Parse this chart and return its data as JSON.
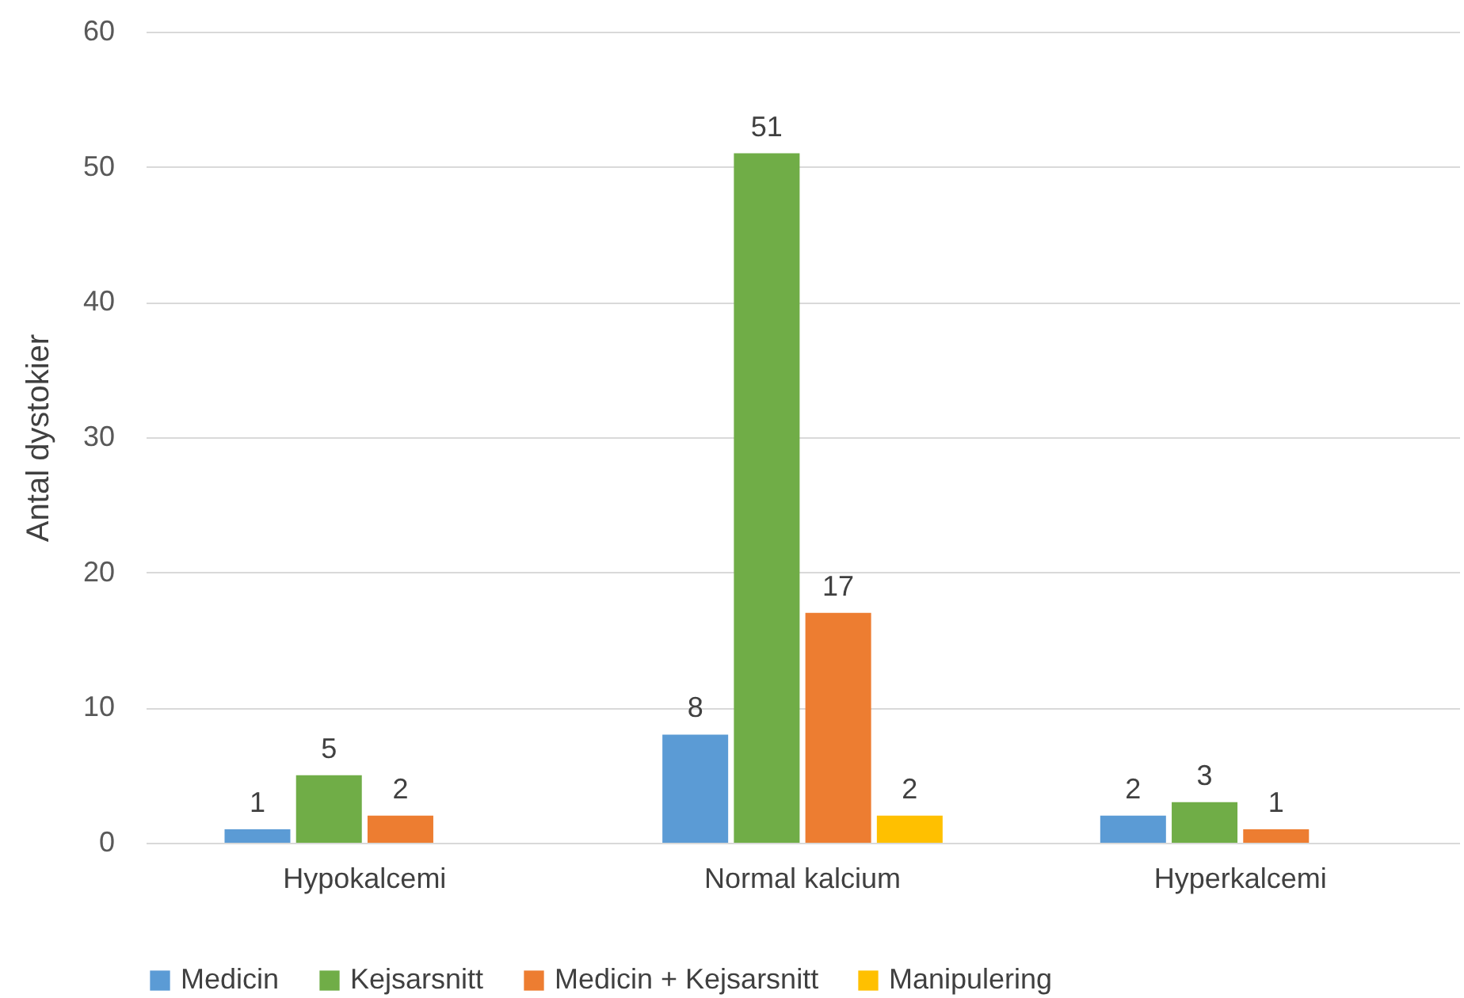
{
  "chart_data": {
    "type": "bar",
    "ylabel": "Antal dystokier",
    "categories": [
      "Hypokalcemi",
      "Normal kalcium",
      "Hyperkalcemi"
    ],
    "series": [
      {
        "name": "Medicin",
        "color": "#5b9bd5",
        "values": [
          1,
          8,
          2
        ]
      },
      {
        "name": "Kejsarsnitt",
        "color": "#70ad47",
        "values": [
          5,
          51,
          3
        ]
      },
      {
        "name": "Medicin + Kejsarsnitt",
        "color": "#ed7d31",
        "values": [
          2,
          17,
          1
        ]
      },
      {
        "name": "Manipulering",
        "color": "#ffc000",
        "values": [
          null,
          2,
          null
        ]
      }
    ],
    "ylim": [
      0,
      60
    ],
    "yticks": [
      0,
      10,
      20,
      30,
      40,
      50,
      60
    ],
    "grid": "y",
    "legend": "bottom",
    "data_labels": true
  }
}
